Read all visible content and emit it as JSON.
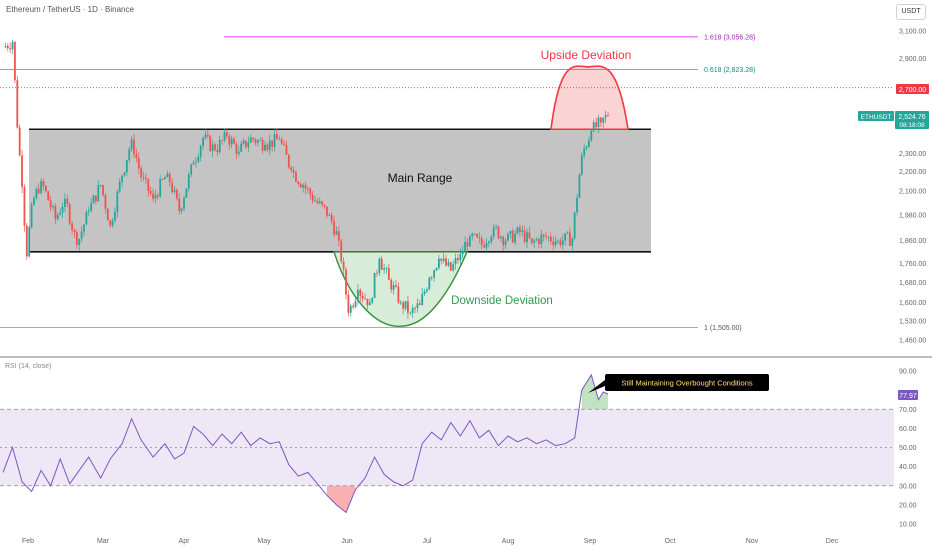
{
  "header": {
    "title": "Ethereum / TetherUS · 1D · Binance",
    "currency_button": "USDT"
  },
  "colors": {
    "up": "#26a69a",
    "down": "#ef5350",
    "range_fill": "#c4c4c4",
    "upside": "#f23645",
    "downside": "#4caf50",
    "fib_1618": "#e040fb",
    "fib_0618": "#26a69a",
    "rsi_line": "#7e57c2",
    "rsi_band": "#ede7f6"
  },
  "annotations": {
    "main_range": "Main Range",
    "upside_deviation": "Upside Deviation",
    "downside_deviation": "Downside Deviation",
    "callout": "Still Maintaining Overbought Conditions"
  },
  "fib_levels": [
    {
      "label": "1.618 (3,056.28)",
      "price": 3056.28
    },
    {
      "label": "0.618 (2,823.28)",
      "price": 2823.28
    },
    {
      "label": "1 (1,505.00)",
      "price": 1505
    }
  ],
  "price_tags": {
    "alert_price": "2,700.00",
    "symbol": "ETHUSDT",
    "last_price": "2,524.76",
    "countdown": "08:18:08"
  },
  "rsi": {
    "label": "RSI (14, close)",
    "current": "77.97"
  },
  "chart_data": [
    {
      "type": "candlestick",
      "title": "Ethereum / TetherUS · 1D · Binance",
      "y_axis_ticks": [
        "3,100.00",
        "2,900.00",
        "2,700.00",
        "2,500.00",
        "2,300.00",
        "2,200.00",
        "2,100.00",
        "1,980.00",
        "1,860.00",
        "1,760.00",
        "1,680.00",
        "1,600.00",
        "1,530.00",
        "1,460.00"
      ],
      "y_scale": "log",
      "x_axis_ticks": [
        "Feb",
        "Mar",
        "Apr",
        "May",
        "Jun",
        "Jul",
        "Aug",
        "Sep",
        "Oct",
        "Nov",
        "Dec"
      ],
      "range_box": {
        "top": 2440,
        "bottom": 1810,
        "label": "Main Range"
      },
      "price_path": [
        {
          "date": "2024-01-27",
          "close": 2980
        },
        {
          "date": "2024-01-31",
          "close": 3020
        },
        {
          "date": "2024-02-02",
          "close": 2450
        },
        {
          "date": "2024-02-04",
          "close": 2120
        },
        {
          "date": "2024-02-06",
          "close": 1790
        },
        {
          "date": "2024-02-08",
          "close": 2030
        },
        {
          "date": "2024-02-12",
          "close": 2150
        },
        {
          "date": "2024-02-18",
          "close": 1960
        },
        {
          "date": "2024-02-22",
          "close": 2060
        },
        {
          "date": "2024-02-27",
          "close": 1840
        },
        {
          "date": "2024-03-03",
          "close": 2000
        },
        {
          "date": "2024-03-08",
          "close": 2130
        },
        {
          "date": "2024-03-12",
          "close": 1930
        },
        {
          "date": "2024-03-17",
          "close": 2180
        },
        {
          "date": "2024-03-21",
          "close": 2380
        },
        {
          "date": "2024-03-25",
          "close": 2170
        },
        {
          "date": "2024-03-30",
          "close": 2060
        },
        {
          "date": "2024-04-05",
          "close": 2190
        },
        {
          "date": "2024-04-10",
          "close": 2000
        },
        {
          "date": "2024-04-16",
          "close": 2250
        },
        {
          "date": "2024-04-20",
          "close": 2390
        },
        {
          "date": "2024-04-25",
          "close": 2320
        },
        {
          "date": "2024-04-30",
          "close": 2400
        },
        {
          "date": "2024-05-05",
          "close": 2310
        },
        {
          "date": "2024-05-10",
          "close": 2390
        },
        {
          "date": "2024-05-16",
          "close": 2350
        },
        {
          "date": "2024-05-22",
          "close": 2380
        },
        {
          "date": "2024-05-27",
          "close": 2210
        },
        {
          "date": "2024-06-01",
          "close": 2130
        },
        {
          "date": "2024-06-06",
          "close": 2050
        },
        {
          "date": "2024-06-12",
          "close": 1980
        },
        {
          "date": "2024-06-16",
          "close": 1860
        },
        {
          "date": "2024-06-20",
          "close": 1560
        },
        {
          "date": "2024-06-24",
          "close": 1650
        },
        {
          "date": "2024-06-29",
          "close": 1600
        },
        {
          "date": "2024-07-03",
          "close": 1780
        },
        {
          "date": "2024-07-07",
          "close": 1690
        },
        {
          "date": "2024-07-12",
          "close": 1600
        },
        {
          "date": "2024-07-16",
          "close": 1560
        },
        {
          "date": "2024-07-20",
          "close": 1590
        },
        {
          "date": "2024-07-24",
          "close": 1700
        },
        {
          "date": "2024-07-28",
          "close": 1780
        },
        {
          "date": "2024-08-02",
          "close": 1730
        },
        {
          "date": "2024-08-06",
          "close": 1800
        },
        {
          "date": "2024-08-10",
          "close": 1880
        },
        {
          "date": "2024-08-15",
          "close": 1840
        },
        {
          "date": "2024-08-20",
          "close": 1920
        },
        {
          "date": "2024-08-25",
          "close": 1860
        },
        {
          "date": "2024-08-31",
          "close": 1900
        },
        {
          "date": "2024-09-05",
          "close": 1850
        },
        {
          "date": "2024-09-10",
          "close": 1880
        },
        {
          "date": "2024-09-16",
          "close": 1860
        },
        {
          "date": "2024-09-22",
          "close": 1870
        },
        {
          "date": "2024-09-26",
          "close": 2290
        },
        {
          "date": "2024-09-30",
          "close": 2430
        },
        {
          "date": "2024-10-04",
          "close": 2480
        },
        {
          "date": "2024-10-07",
          "close": 2524.76
        }
      ],
      "projection_arcs": [
        {
          "label": "Upside Deviation",
          "peak": 2840
        },
        {
          "label": "Downside Deviation",
          "trough": 1510
        }
      ]
    },
    {
      "type": "line",
      "title": "RSI (14, close)",
      "y_axis_ticks": [
        "90.00",
        "80.00",
        "70.00",
        "60.00",
        "50.00",
        "40.00",
        "30.00",
        "20.00",
        "10.00"
      ],
      "levels": [
        70,
        50,
        30
      ],
      "last_value": 77.97,
      "rsi_path": [
        {
          "date": "2024-01-27",
          "value": 37
        },
        {
          "date": "2024-01-31",
          "value": 50
        },
        {
          "date": "2024-02-04",
          "value": 32
        },
        {
          "date": "2024-02-08",
          "value": 27
        },
        {
          "date": "2024-02-12",
          "value": 38
        },
        {
          "date": "2024-02-16",
          "value": 30
        },
        {
          "date": "2024-02-20",
          "value": 44
        },
        {
          "date": "2024-02-24",
          "value": 31
        },
        {
          "date": "2024-02-28",
          "value": 38
        },
        {
          "date": "2024-03-03",
          "value": 45
        },
        {
          "date": "2024-03-08",
          "value": 34
        },
        {
          "date": "2024-03-12",
          "value": 44
        },
        {
          "date": "2024-03-17",
          "value": 52
        },
        {
          "date": "2024-03-21",
          "value": 65
        },
        {
          "date": "2024-03-25",
          "value": 54
        },
        {
          "date": "2024-03-30",
          "value": 45
        },
        {
          "date": "2024-04-04",
          "value": 52
        },
        {
          "date": "2024-04-08",
          "value": 44
        },
        {
          "date": "2024-04-12",
          "value": 47
        },
        {
          "date": "2024-04-16",
          "value": 61
        },
        {
          "date": "2024-04-20",
          "value": 57
        },
        {
          "date": "2024-04-24",
          "value": 51
        },
        {
          "date": "2024-04-28",
          "value": 57
        },
        {
          "date": "2024-05-02",
          "value": 52
        },
        {
          "date": "2024-05-06",
          "value": 58
        },
        {
          "date": "2024-05-10",
          "value": 51
        },
        {
          "date": "2024-05-14",
          "value": 55
        },
        {
          "date": "2024-05-18",
          "value": 52
        },
        {
          "date": "2024-05-22",
          "value": 53
        },
        {
          "date": "2024-05-26",
          "value": 41
        },
        {
          "date": "2024-05-30",
          "value": 35
        },
        {
          "date": "2024-06-03",
          "value": 37
        },
        {
          "date": "2024-06-07",
          "value": 31
        },
        {
          "date": "2024-06-11",
          "value": 25
        },
        {
          "date": "2024-06-15",
          "value": 20
        },
        {
          "date": "2024-06-19",
          "value": 16
        },
        {
          "date": "2024-06-23",
          "value": 28
        },
        {
          "date": "2024-06-27",
          "value": 34
        },
        {
          "date": "2024-07-01",
          "value": 45
        },
        {
          "date": "2024-07-05",
          "value": 36
        },
        {
          "date": "2024-07-09",
          "value": 32
        },
        {
          "date": "2024-07-13",
          "value": 30
        },
        {
          "date": "2024-07-17",
          "value": 33
        },
        {
          "date": "2024-07-21",
          "value": 52
        },
        {
          "date": "2024-07-25",
          "value": 58
        },
        {
          "date": "2024-07-29",
          "value": 54
        },
        {
          "date": "2024-08-02",
          "value": 63
        },
        {
          "date": "2024-08-06",
          "value": 56
        },
        {
          "date": "2024-08-10",
          "value": 64
        },
        {
          "date": "2024-08-14",
          "value": 55
        },
        {
          "date": "2024-08-18",
          "value": 59
        },
        {
          "date": "2024-08-22",
          "value": 51
        },
        {
          "date": "2024-08-26",
          "value": 56
        },
        {
          "date": "2024-08-30",
          "value": 53
        },
        {
          "date": "2024-09-03",
          "value": 55
        },
        {
          "date": "2024-09-07",
          "value": 52
        },
        {
          "date": "2024-09-11",
          "value": 54
        },
        {
          "date": "2024-09-15",
          "value": 51
        },
        {
          "date": "2024-09-19",
          "value": 52
        },
        {
          "date": "2024-09-23",
          "value": 55
        },
        {
          "date": "2024-09-26",
          "value": 80
        },
        {
          "date": "2024-09-30",
          "value": 88
        },
        {
          "date": "2024-10-03",
          "value": 75
        },
        {
          "date": "2024-10-05",
          "value": 79
        },
        {
          "date": "2024-10-07",
          "value": 77.97
        }
      ]
    }
  ]
}
